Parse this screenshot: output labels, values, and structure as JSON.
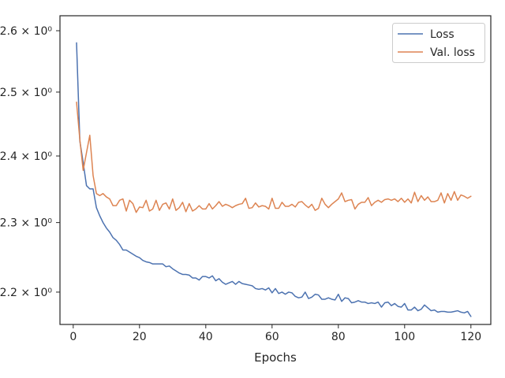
{
  "chart_data": {
    "type": "line",
    "title": "",
    "xlabel": "Epochs",
    "ylabel": "",
    "yscale": "log",
    "xlim": [
      -4,
      126
    ],
    "ylim": [
      2.155,
      2.625
    ],
    "grid": false,
    "legend_position": "top-right",
    "x_ticks": [
      0,
      20,
      40,
      60,
      80,
      100,
      120
    ],
    "x_tick_labels": [
      "0",
      "20",
      "40",
      "60",
      "80",
      "100",
      "120"
    ],
    "y_ticks": [
      2.2,
      2.3,
      2.4,
      2.5,
      2.6
    ],
    "y_tick_labels": [
      "2.2 × 10⁰",
      "2.3 × 10⁰",
      "2.4 × 10⁰",
      "2.5 × 10⁰",
      "2.6 × 10⁰"
    ],
    "series": [
      {
        "name": "Loss",
        "color": "#4c72b0",
        "x": [
          1,
          2,
          3,
          4,
          5,
          6,
          7,
          8,
          9,
          10,
          11,
          12,
          13,
          14,
          15,
          16,
          17,
          18,
          19,
          20,
          21,
          22,
          23,
          24,
          25,
          26,
          27,
          28,
          29,
          30,
          31,
          32,
          33,
          34,
          35,
          36,
          37,
          38,
          39,
          40,
          41,
          42,
          43,
          44,
          45,
          46,
          47,
          48,
          49,
          50,
          51,
          52,
          53,
          54,
          55,
          56,
          57,
          58,
          59,
          60,
          61,
          62,
          63,
          64,
          65,
          66,
          67,
          68,
          69,
          70,
          71,
          72,
          73,
          74,
          75,
          76,
          77,
          78,
          79,
          80,
          81,
          82,
          83,
          84,
          85,
          86,
          87,
          88,
          89,
          90,
          91,
          92,
          93,
          94,
          95,
          96,
          97,
          98,
          99,
          100,
          101,
          102,
          103,
          104,
          105,
          106,
          107,
          108,
          109,
          110,
          111,
          112,
          113,
          114,
          115,
          116,
          117,
          118,
          119,
          120
        ],
        "y": [
          2.58,
          2.423,
          2.39,
          2.355,
          2.35,
          2.35,
          2.322,
          2.31,
          2.3,
          2.292,
          2.286,
          2.278,
          2.274,
          2.268,
          2.26,
          2.26,
          2.257,
          2.254,
          2.251,
          2.249,
          2.245,
          2.243,
          2.242,
          2.24,
          2.24,
          2.24,
          2.24,
          2.236,
          2.237,
          2.233,
          2.23,
          2.227,
          2.225,
          2.225,
          2.224,
          2.22,
          2.22,
          2.217,
          2.222,
          2.222,
          2.22,
          2.223,
          2.216,
          2.219,
          2.214,
          2.211,
          2.213,
          2.215,
          2.211,
          2.215,
          2.212,
          2.211,
          2.21,
          2.209,
          2.205,
          2.204,
          2.205,
          2.203,
          2.206,
          2.199,
          2.205,
          2.198,
          2.2,
          2.197,
          2.2,
          2.199,
          2.194,
          2.192,
          2.193,
          2.2,
          2.191,
          2.193,
          2.197,
          2.196,
          2.19,
          2.19,
          2.192,
          2.19,
          2.189,
          2.197,
          2.187,
          2.192,
          2.191,
          2.185,
          2.186,
          2.188,
          2.186,
          2.186,
          2.184,
          2.185,
          2.184,
          2.186,
          2.179,
          2.185,
          2.186,
          2.181,
          2.184,
          2.18,
          2.179,
          2.184,
          2.175,
          2.175,
          2.179,
          2.174,
          2.176,
          2.182,
          2.178,
          2.174,
          2.175,
          2.172,
          2.173,
          2.173,
          2.172,
          2.172,
          2.173,
          2.174,
          2.172,
          2.171,
          2.173,
          2.166
        ]
      },
      {
        "name": "Val. loss",
        "color": "#dd8452",
        "x": [
          1,
          2,
          3,
          4,
          5,
          6,
          7,
          8,
          9,
          10,
          11,
          12,
          13,
          14,
          15,
          16,
          17,
          18,
          19,
          20,
          21,
          22,
          23,
          24,
          25,
          26,
          27,
          28,
          29,
          30,
          31,
          32,
          33,
          34,
          35,
          36,
          37,
          38,
          39,
          40,
          41,
          42,
          43,
          44,
          45,
          46,
          47,
          48,
          49,
          50,
          51,
          52,
          53,
          54,
          55,
          56,
          57,
          58,
          59,
          60,
          61,
          62,
          63,
          64,
          65,
          66,
          67,
          68,
          69,
          70,
          71,
          72,
          73,
          74,
          75,
          76,
          77,
          78,
          79,
          80,
          81,
          82,
          83,
          84,
          85,
          86,
          87,
          88,
          89,
          90,
          91,
          92,
          93,
          94,
          95,
          96,
          97,
          98,
          99,
          100,
          101,
          102,
          103,
          104,
          105,
          106,
          107,
          108,
          109,
          110,
          111,
          112,
          113,
          114,
          115,
          116,
          117,
          118,
          119,
          120
        ],
        "y": [
          2.484,
          2.425,
          2.378,
          2.405,
          2.432,
          2.37,
          2.343,
          2.34,
          2.343,
          2.338,
          2.335,
          2.325,
          2.325,
          2.333,
          2.335,
          2.317,
          2.333,
          2.328,
          2.315,
          2.323,
          2.322,
          2.333,
          2.317,
          2.32,
          2.333,
          2.318,
          2.327,
          2.329,
          2.32,
          2.335,
          2.318,
          2.322,
          2.33,
          2.316,
          2.328,
          2.317,
          2.32,
          2.325,
          2.32,
          2.32,
          2.328,
          2.32,
          2.325,
          2.331,
          2.324,
          2.327,
          2.325,
          2.322,
          2.325,
          2.327,
          2.328,
          2.336,
          2.321,
          2.322,
          2.329,
          2.323,
          2.325,
          2.324,
          2.32,
          2.336,
          2.321,
          2.321,
          2.33,
          2.324,
          2.324,
          2.327,
          2.323,
          2.33,
          2.331,
          2.326,
          2.322,
          2.327,
          2.318,
          2.321,
          2.336,
          2.327,
          2.322,
          2.327,
          2.331,
          2.335,
          2.344,
          2.331,
          2.333,
          2.334,
          2.32,
          2.327,
          2.33,
          2.33,
          2.337,
          2.325,
          2.33,
          2.333,
          2.33,
          2.334,
          2.335,
          2.333,
          2.335,
          2.331,
          2.336,
          2.33,
          2.335,
          2.329,
          2.345,
          2.331,
          2.34,
          2.333,
          2.338,
          2.331,
          2.331,
          2.333,
          2.344,
          2.329,
          2.343,
          2.333,
          2.346,
          2.333,
          2.341,
          2.339,
          2.336,
          2.339
        ]
      }
    ]
  }
}
